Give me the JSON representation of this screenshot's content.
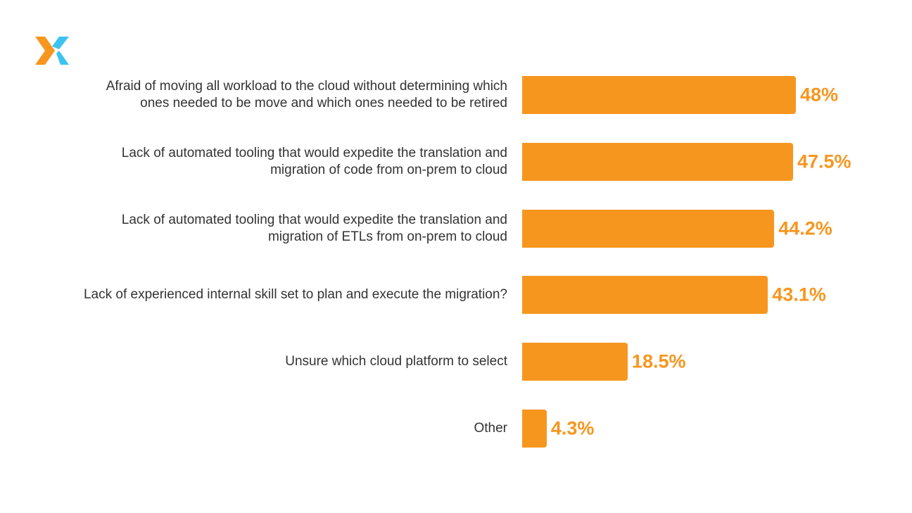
{
  "logo": {
    "name": "x-logo",
    "colors": [
      "#f7961f",
      "#3cc3f0"
    ]
  },
  "chart_data": {
    "type": "bar",
    "orientation": "horizontal",
    "categories": [
      "Afraid of moving all workload to the cloud without determining which ones needed to be move and which ones needed to be retired",
      "Lack of automated tooling that would expedite the translation and migration of code from on-prem to cloud",
      "Lack of automated tooling that would expedite the translation and migration of ETLs from on-prem to cloud",
      "Lack of experienced internal skill set to plan and execute the migration?",
      "Unsure which cloud platform to select",
      "Other"
    ],
    "category_lines": [
      [
        "Afraid of moving all workload to the cloud without determining which",
        "ones needed to be move and which ones needed to be retired"
      ],
      [
        "Lack of automated tooling that would expedite the translation and",
        "migration of code from on-prem to cloud"
      ],
      [
        "Lack of automated tooling that would expedite the translation and",
        "migration of ETLs from on-prem to cloud"
      ],
      [
        "Lack of experienced internal skill set to plan and execute the migration?"
      ],
      [
        "Unsure which cloud platform to select"
      ],
      [
        "Other"
      ]
    ],
    "values": [
      48,
      47.5,
      44.2,
      43.1,
      18.5,
      4.3
    ],
    "labels": [
      "48%",
      "47.5%",
      "44.2%",
      "43.1%",
      "18.5%",
      "4.3%"
    ],
    "bar_color": "#f7961f",
    "title": "",
    "xlabel": "",
    "ylabel": "",
    "grid": false,
    "legend": "none"
  }
}
